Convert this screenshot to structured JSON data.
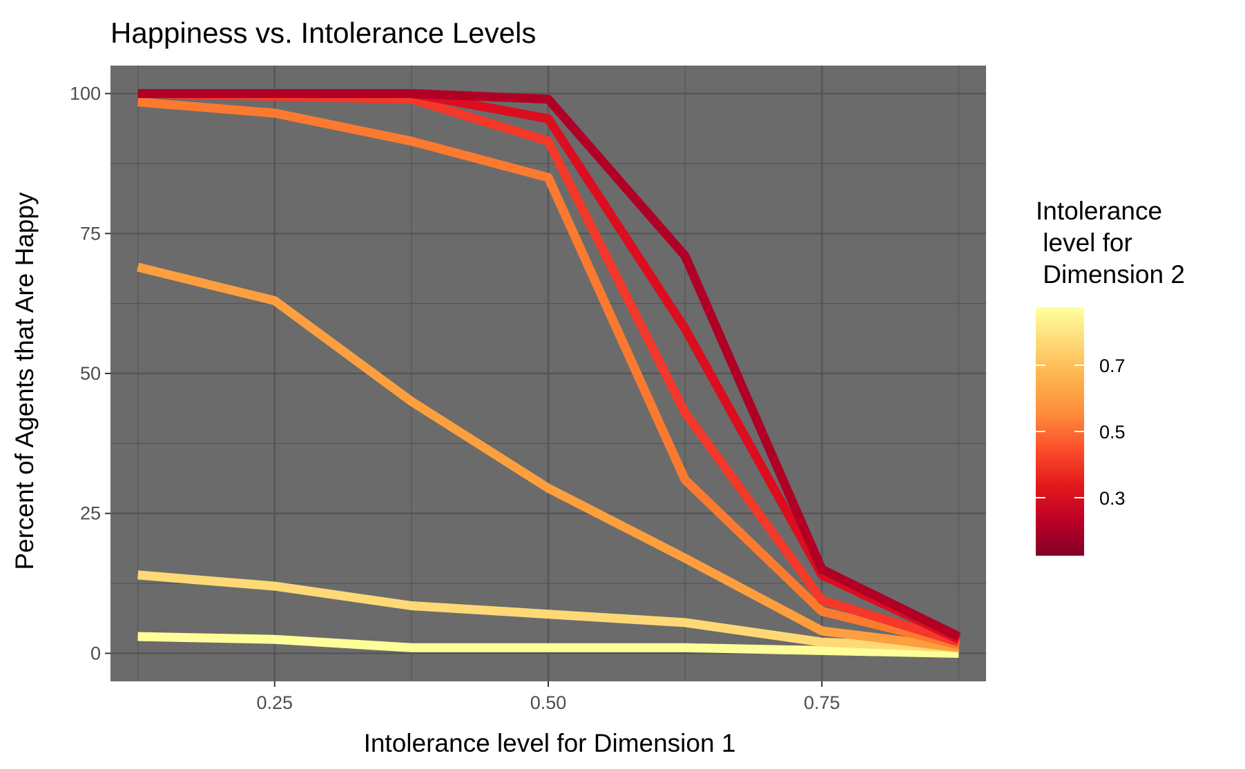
{
  "chart_data": {
    "type": "line",
    "title": "Happiness vs. Intolerance Levels",
    "xlabel": "Intolerance level for Dimension 1",
    "ylabel": "Percent of Agents that Are Happy",
    "xlim": [
      0.1,
      0.9
    ],
    "ylim": [
      -5,
      105
    ],
    "x_ticks": [
      0.25,
      0.5,
      0.75
    ],
    "x_tick_labels": [
      "0.25",
      "0.50",
      "0.75"
    ],
    "y_ticks": [
      0,
      25,
      50,
      75,
      100
    ],
    "y_tick_labels": [
      "0",
      "25",
      "50",
      "75",
      "100"
    ],
    "grid": true,
    "panel_background": "#6b6b6b",
    "grid_color": "#555555",
    "x": [
      0.125,
      0.25,
      0.375,
      0.5,
      0.625,
      0.75,
      0.875
    ],
    "series": [
      {
        "d2": 0.875,
        "color": "#ffff99",
        "values": [
          3,
          2.5,
          1,
          1,
          1,
          0.5,
          0
        ]
      },
      {
        "d2": 0.75,
        "color": "#fed976",
        "values": [
          14,
          12,
          8.5,
          7,
          5.5,
          2,
          1
        ]
      },
      {
        "d2": 0.625,
        "color": "#fd9f3e",
        "values": [
          69,
          63,
          45,
          29.5,
          17,
          4,
          1
        ]
      },
      {
        "d2": 0.5,
        "color": "#fc7a30",
        "values": [
          98.5,
          96.5,
          91.5,
          85,
          31,
          7.5,
          1.5
        ]
      },
      {
        "d2": 0.375,
        "color": "#f4382a",
        "values": [
          100,
          99.5,
          99,
          91.5,
          43,
          9.5,
          2
        ]
      },
      {
        "d2": 0.25,
        "color": "#dc0d1f",
        "values": [
          100,
          100,
          100,
          95.5,
          58,
          14,
          2.5
        ]
      },
      {
        "d2": 0.125,
        "color": "#b00026",
        "values": [
          100,
          100,
          100,
          99,
          71,
          15,
          3
        ]
      }
    ],
    "legend": {
      "title_lines": [
        "Intolerance",
        " level for",
        " Dimension 2"
      ],
      "placement": "right",
      "type": "colorbar",
      "range": [
        0.125,
        0.875
      ],
      "ticks": [
        0.3,
        0.5,
        0.7
      ],
      "tick_labels": [
        "0.3",
        "0.5",
        "0.7"
      ],
      "colors": [
        "#800026",
        "#bd0026",
        "#e31a1c",
        "#fc4e2a",
        "#fd8d3c",
        "#feb24c",
        "#fed976",
        "#ffffa0"
      ]
    }
  }
}
